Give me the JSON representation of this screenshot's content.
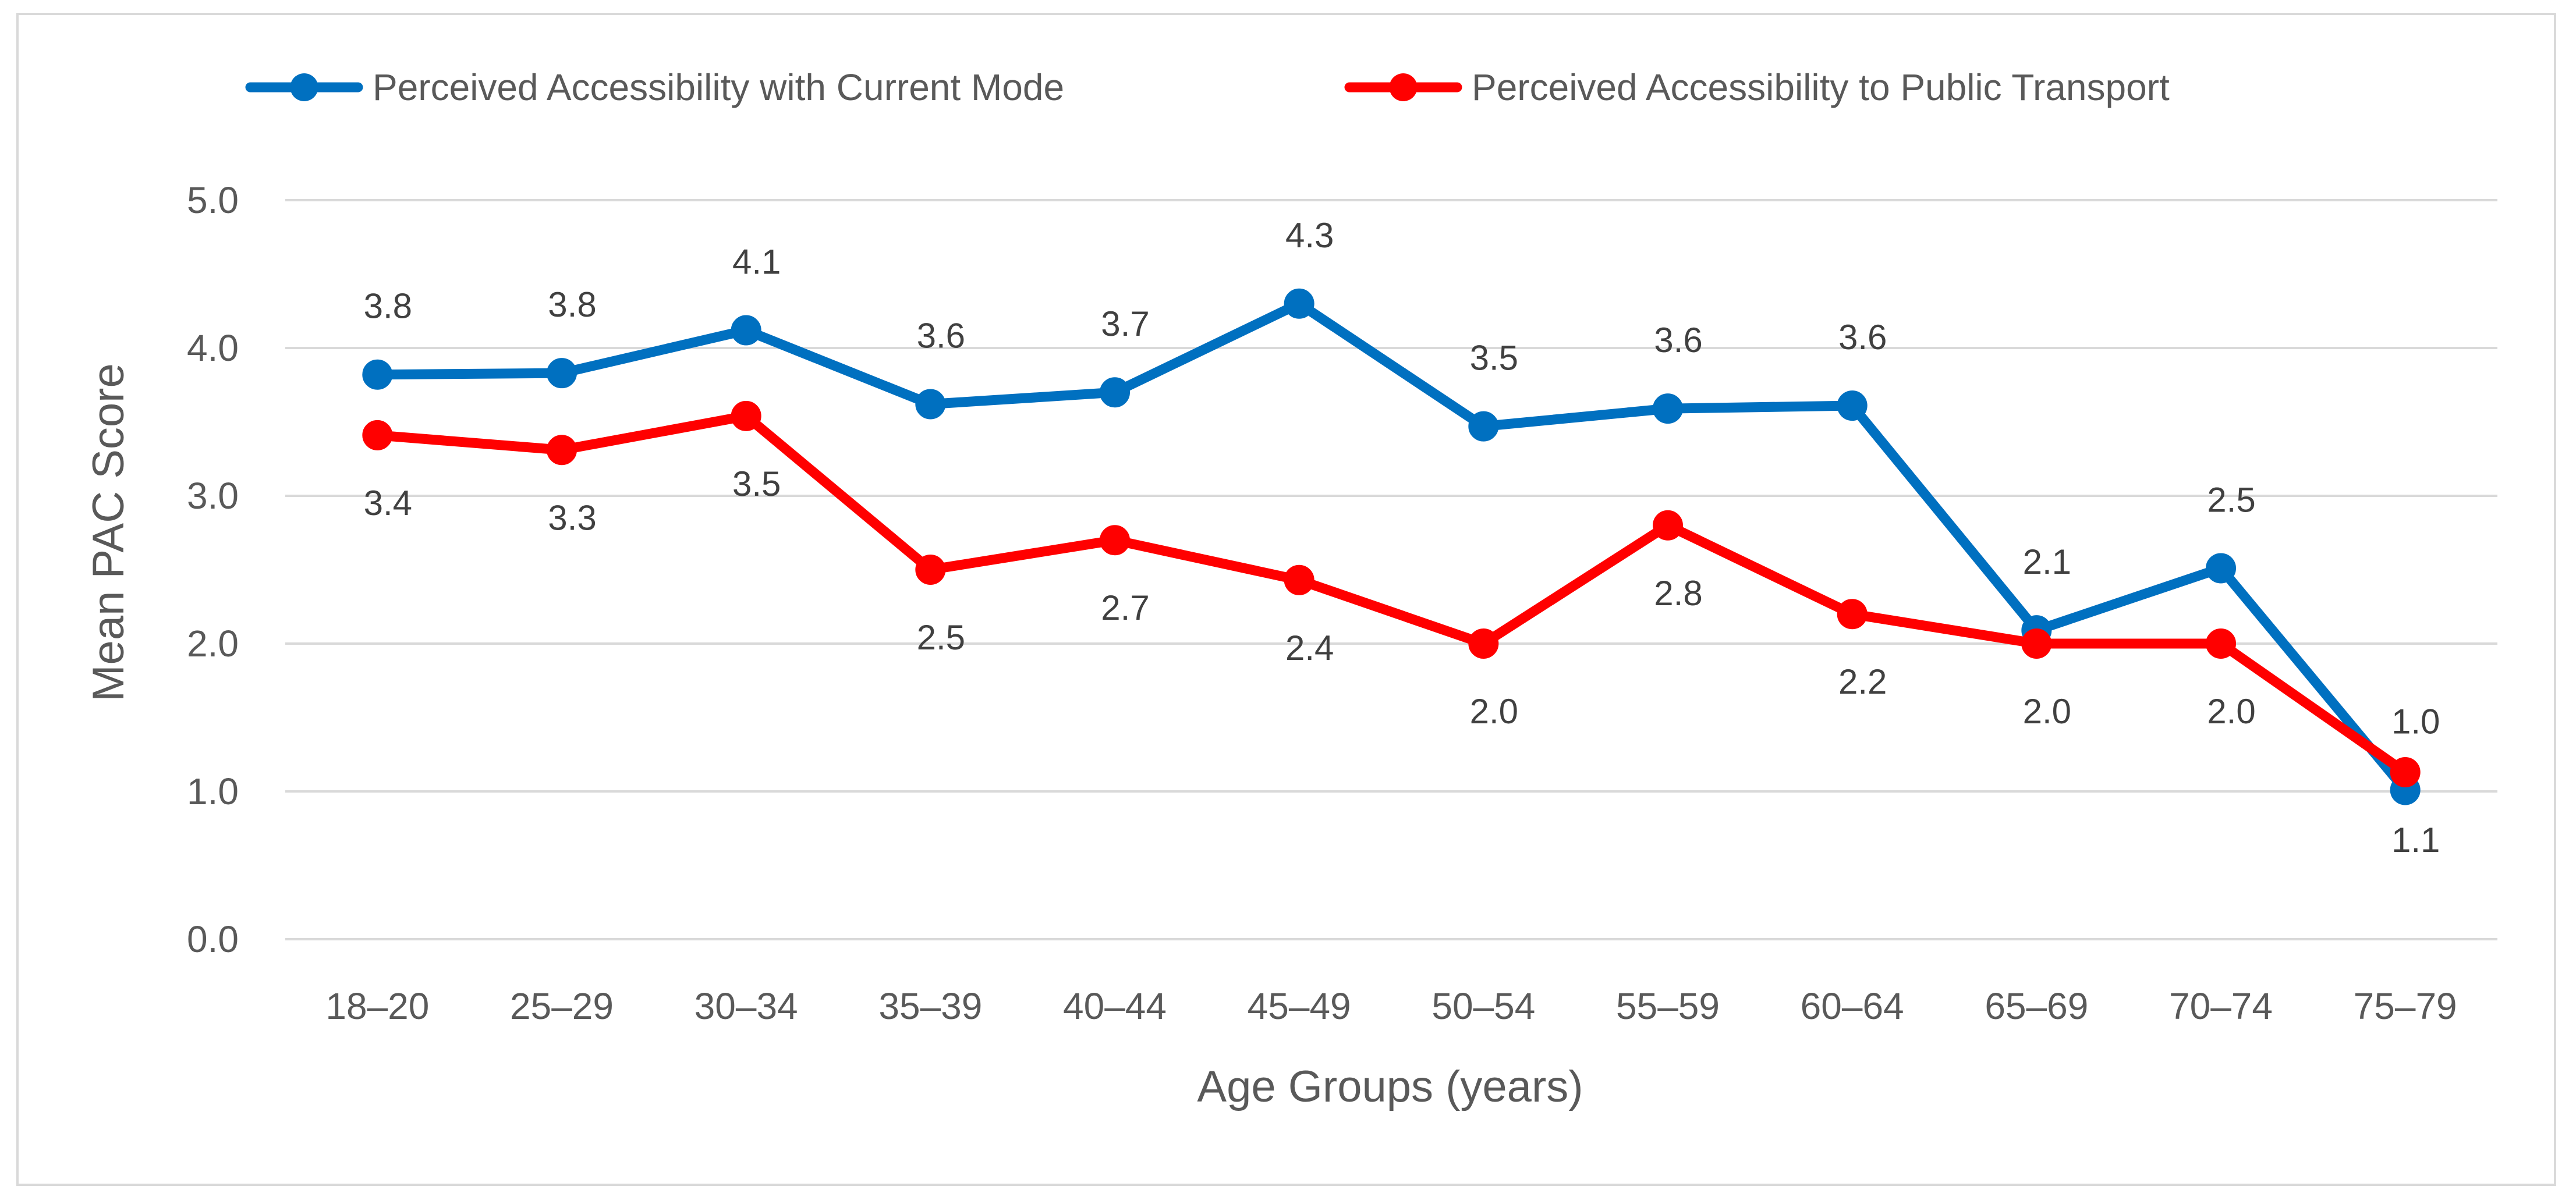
{
  "chart_data": {
    "type": "line",
    "title": "",
    "xlabel": "Age Groups (years)",
    "ylabel": "Mean PAC Score",
    "ylim": [
      0,
      5
    ],
    "yticks": [
      "0.0",
      "1.0",
      "2.0",
      "3.0",
      "4.0",
      "5.0"
    ],
    "grid": true,
    "legend_position": "top",
    "categories": [
      "18–20",
      "25–29",
      "30–34",
      "35–39",
      "40–44",
      "45–49",
      "50–54",
      "55–59",
      "60–64",
      "65–69",
      "70–74",
      "75–79"
    ],
    "series": [
      {
        "name": "Perceived Accessibility with Current Mode",
        "color": "#0070C0",
        "values": [
          3.82,
          3.83,
          4.12,
          3.62,
          3.7,
          4.3,
          3.47,
          3.59,
          3.61,
          2.09,
          2.51,
          1.01
        ],
        "labels": [
          "3.8",
          "3.8",
          "4.1",
          "3.6",
          "3.7",
          "4.3",
          "3.5",
          "3.6",
          "3.6",
          "2.1",
          "2.5",
          "1.0"
        ],
        "label_side": [
          "above",
          "above",
          "above",
          "above",
          "above",
          "above",
          "above",
          "above",
          "above",
          "above",
          "above",
          "above"
        ]
      },
      {
        "name": "Perceived Accessibility to Public Transport",
        "color": "#FF0000",
        "values": [
          3.41,
          3.31,
          3.54,
          2.5,
          2.7,
          2.43,
          2.0,
          2.8,
          2.2,
          2.0,
          2.0,
          1.13
        ],
        "labels": [
          "3.4",
          "3.3",
          "3.5",
          "2.5",
          "2.7",
          "2.4",
          "2.0",
          "2.8",
          "2.2",
          "2.0",
          "2.0",
          "1.1"
        ],
        "label_side": [
          "below",
          "below",
          "below",
          "below",
          "below",
          "below",
          "below",
          "below",
          "below",
          "below",
          "below",
          "below"
        ]
      }
    ]
  }
}
